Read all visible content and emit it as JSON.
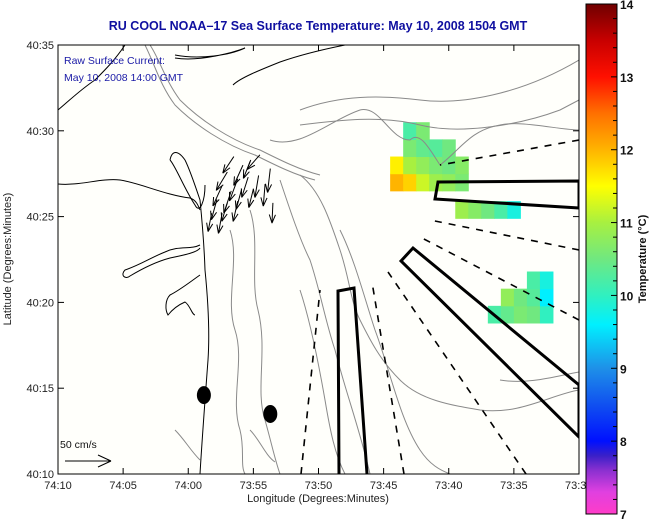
{
  "chart_data": {
    "type": "heatmap",
    "title": "RU COOL  NOAA–17  Sea Surface Temperature:  May 10, 2008 1504 GMT",
    "annotation": {
      "line1": "Raw Surface Current:",
      "line2": "May 10, 2008 14:00 GMT"
    },
    "xlabel": "Longitude (Degrees:Minutes)",
    "ylabel": "Latitude (Degrees:Minutes)",
    "x_ticks": [
      "74:10",
      "74:05",
      "74:00",
      "73:55",
      "73:50",
      "73:45",
      "73:40",
      "73:35",
      "73:3"
    ],
    "x_tick_values_min_west": [
      -10,
      -5,
      0,
      5,
      10,
      15,
      20,
      25,
      30
    ],
    "xlim_min_west": [
      -10,
      30
    ],
    "y_ticks": [
      "40:35",
      "40:30",
      "40:25",
      "40:20",
      "40:15",
      "40:10"
    ],
    "y_tick_values_min_north": [
      35,
      30,
      25,
      20,
      15,
      10
    ],
    "ylim_min_north": [
      10,
      35
    ],
    "grid": false,
    "scale_arrow": {
      "label": "50 cm/s",
      "speed_cm_s": 50
    },
    "colorbar": {
      "label": "Temperature (°C)",
      "ticks": [
        "14",
        "13",
        "12",
        "11",
        "10",
        "9",
        "8",
        "7"
      ],
      "range": [
        7,
        14
      ],
      "stops": [
        {
          "value": 7,
          "color": "#ff3cc8"
        },
        {
          "value": 7.3,
          "color": "#e040e0"
        },
        {
          "value": 7.6,
          "color": "#8a30d0"
        },
        {
          "value": 7.8,
          "color": "#3a20c8"
        },
        {
          "value": 8.0,
          "color": "#0010ff"
        },
        {
          "value": 8.5,
          "color": "#1050f0"
        },
        {
          "value": 9.0,
          "color": "#1e90e8"
        },
        {
          "value": 9.6,
          "color": "#00f0ff"
        },
        {
          "value": 10.0,
          "color": "#30f0c0"
        },
        {
          "value": 10.5,
          "color": "#70e880"
        },
        {
          "value": 11.0,
          "color": "#a8f040"
        },
        {
          "value": 11.5,
          "color": "#ffff00"
        },
        {
          "value": 12.0,
          "color": "#ffb400"
        },
        {
          "value": 12.5,
          "color": "#ff7000"
        },
        {
          "value": 13.0,
          "color": "#ff1000"
        },
        {
          "value": 13.5,
          "color": "#c80000"
        },
        {
          "value": 14.0,
          "color": "#700000"
        }
      ]
    },
    "sst_patches": [
      {
        "name": "north-patch",
        "lon_min": 15.5,
        "lat_min": 26.5,
        "cells": [
          [
            0,
            0,
            12.0,
            1
          ],
          [
            1,
            0,
            11.8,
            1
          ],
          [
            2,
            0,
            11.2,
            1
          ],
          [
            3,
            0,
            10.9,
            1
          ],
          [
            4,
            0,
            10.8,
            1
          ],
          [
            5,
            0,
            10.6,
            1
          ],
          [
            0,
            1,
            11.6,
            1
          ],
          [
            1,
            1,
            11.0,
            1
          ],
          [
            2,
            1,
            10.8,
            1
          ],
          [
            3,
            1,
            10.6,
            1
          ],
          [
            4,
            1,
            10.5,
            1
          ],
          [
            5,
            1,
            10.7,
            1
          ],
          [
            1,
            2,
            10.6,
            1
          ],
          [
            2,
            2,
            10.4,
            1
          ],
          [
            3,
            2,
            10.3,
            1
          ],
          [
            4,
            2,
            10.5,
            1
          ],
          [
            1,
            3,
            10.2,
            1
          ],
          [
            2,
            3,
            10.6,
            1
          ]
        ]
      },
      {
        "name": "middle-band",
        "lon_min": 20.5,
        "lat_min": 24.9,
        "cells": [
          [
            0,
            0,
            10.9,
            1
          ],
          [
            1,
            0,
            10.7,
            1
          ],
          [
            2,
            0,
            10.5,
            1
          ],
          [
            3,
            0,
            10.2,
            1
          ],
          [
            4,
            0,
            9.8,
            1
          ]
        ]
      },
      {
        "name": "east-patch",
        "lon_min": 23.0,
        "lat_min": 18.8,
        "cells": [
          [
            0,
            0,
            10.2,
            1
          ],
          [
            1,
            0,
            10.4,
            1
          ],
          [
            2,
            0,
            10.6,
            1
          ],
          [
            3,
            0,
            10.5,
            1
          ],
          [
            4,
            0,
            10.0,
            1
          ],
          [
            1,
            1,
            10.8,
            1
          ],
          [
            2,
            1,
            10.5,
            1
          ],
          [
            3,
            1,
            10.3,
            1
          ],
          [
            4,
            1,
            9.6,
            1
          ],
          [
            3,
            2,
            10.2,
            1
          ],
          [
            4,
            2,
            9.8,
            1
          ]
        ]
      }
    ],
    "current_vectors": [
      {
        "lon": 3.5,
        "lat": 28.5,
        "u": -12,
        "v": -18
      },
      {
        "lon": 4.2,
        "lat": 28.0,
        "u": -10,
        "v": -22
      },
      {
        "lon": 4.8,
        "lat": 28.3,
        "u": -8,
        "v": -20
      },
      {
        "lon": 5.5,
        "lat": 28.6,
        "u": -14,
        "v": -16
      },
      {
        "lon": 3.0,
        "lat": 27.6,
        "u": -12,
        "v": -20
      },
      {
        "lon": 3.8,
        "lat": 27.2,
        "u": -9,
        "v": -24
      },
      {
        "lon": 4.6,
        "lat": 27.3,
        "u": -7,
        "v": -22
      },
      {
        "lon": 5.4,
        "lat": 27.4,
        "u": -4,
        "v": -24
      },
      {
        "lon": 6.3,
        "lat": 27.8,
        "u": -3,
        "v": -26
      },
      {
        "lon": 2.6,
        "lat": 26.8,
        "u": -10,
        "v": -22
      },
      {
        "lon": 3.3,
        "lat": 26.5,
        "u": -8,
        "v": -24
      },
      {
        "lon": 4.1,
        "lat": 26.6,
        "u": -6,
        "v": -22
      },
      {
        "lon": 5.0,
        "lat": 26.6,
        "u": -5,
        "v": -20
      },
      {
        "lon": 5.9,
        "lat": 26.9,
        "u": -2,
        "v": -24
      },
      {
        "lon": 2.2,
        "lat": 26.0,
        "u": -6,
        "v": -22
      },
      {
        "lon": 3.0,
        "lat": 25.8,
        "u": -6,
        "v": -20
      },
      {
        "lon": 3.8,
        "lat": 25.9,
        "u": -5,
        "v": -22
      },
      {
        "lon": 1.8,
        "lat": 25.2,
        "u": -4,
        "v": -20
      },
      {
        "lon": 2.6,
        "lat": 25.2,
        "u": -4,
        "v": -22
      },
      {
        "lon": 6.5,
        "lat": 25.8,
        "u": -1,
        "v": -22
      }
    ],
    "buoys": [
      {
        "lon": 1.2,
        "lat": 14.6
      },
      {
        "lon": 6.3,
        "lat": 13.5
      }
    ]
  }
}
